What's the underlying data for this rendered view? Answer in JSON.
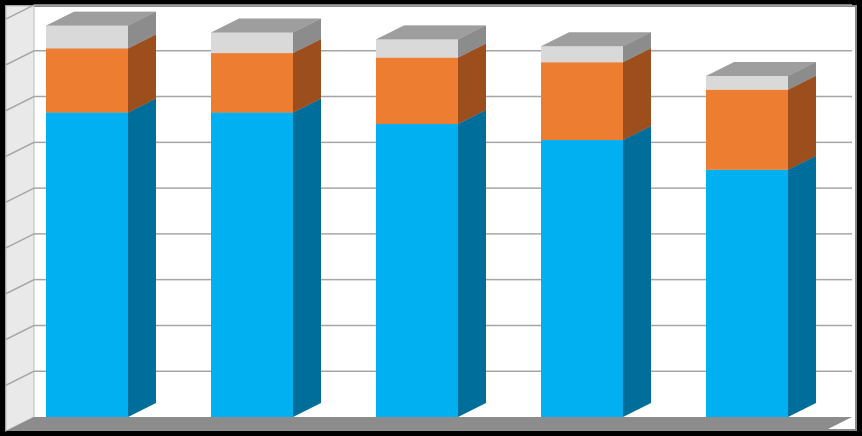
{
  "chart_data": {
    "type": "bar",
    "stacked": true,
    "three_d": true,
    "title": "",
    "xlabel": "",
    "ylabel": "",
    "categories": [
      "",
      "",
      "",
      "",
      ""
    ],
    "ylim": [
      0,
      9
    ],
    "grid": true,
    "legend": "none",
    "series": [
      {
        "color": "#00B0F0",
        "side_color": "#006E9B",
        "values": [
          6.65,
          6.65,
          6.4,
          6.05,
          5.4
        ]
      },
      {
        "color": "#ED7D31",
        "side_color": "#9C4E1C",
        "values": [
          1.4,
          1.3,
          1.45,
          1.7,
          1.75
        ]
      },
      {
        "color": "#D9D9D9",
        "side_color": "#8C8C8C",
        "values": [
          0.5,
          0.45,
          0.4,
          0.35,
          0.3
        ]
      }
    ]
  }
}
